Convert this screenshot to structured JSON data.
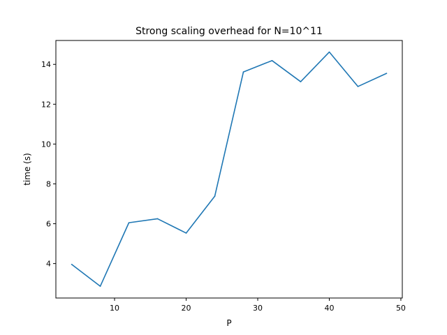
{
  "chart_data": {
    "type": "line",
    "title": "Strong scaling overhead for N=10^11",
    "xlabel": "P",
    "ylabel": "time (s)",
    "x": [
      4,
      8,
      12,
      16,
      20,
      24,
      28,
      32,
      36,
      40,
      44,
      48
    ],
    "series": [
      {
        "values": [
          3.96,
          2.86,
          6.05,
          6.25,
          5.53,
          7.38,
          13.62,
          14.19,
          13.13,
          14.62,
          12.89,
          13.55
        ],
        "color": "#1f77b4"
      }
    ],
    "xlim": [
      1.8,
      50.2
    ],
    "ylim": [
      2.27,
      15.2
    ],
    "xticks": [
      10,
      20,
      30,
      40,
      50
    ],
    "yticks": [
      4,
      6,
      8,
      10,
      12,
      14
    ],
    "grid": false
  }
}
